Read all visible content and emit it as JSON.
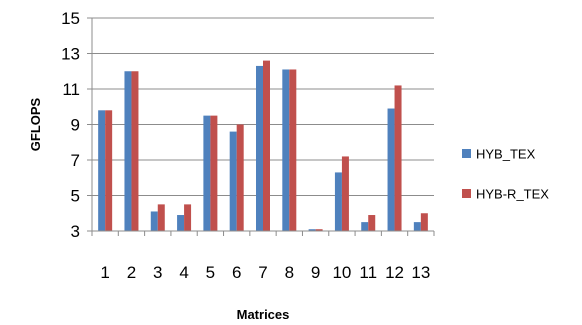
{
  "chart_data": {
    "type": "bar",
    "categories": [
      "1",
      "2",
      "3",
      "4",
      "5",
      "6",
      "7",
      "8",
      "9",
      "10",
      "11",
      "12",
      "13"
    ],
    "series": [
      {
        "name": "HYB_TEX",
        "color": "#4f81bd",
        "values": [
          9.8,
          12.0,
          4.1,
          3.9,
          9.5,
          8.6,
          12.3,
          12.1,
          3.1,
          6.3,
          3.5,
          9.9,
          3.5
        ]
      },
      {
        "name": "HYB-R_TEX",
        "color": "#c0504d",
        "values": [
          9.8,
          12.0,
          4.5,
          4.5,
          9.5,
          9.0,
          12.6,
          12.1,
          3.1,
          7.2,
          3.9,
          11.2,
          4.0
        ]
      }
    ],
    "xlabel": "Matrices",
    "ylabel": "GFLOPS",
    "ylim": [
      3,
      15
    ],
    "yticks": [
      "3",
      "5",
      "7",
      "9",
      "11",
      "13",
      "15"
    ],
    "grid": true,
    "legend_position": "right"
  }
}
